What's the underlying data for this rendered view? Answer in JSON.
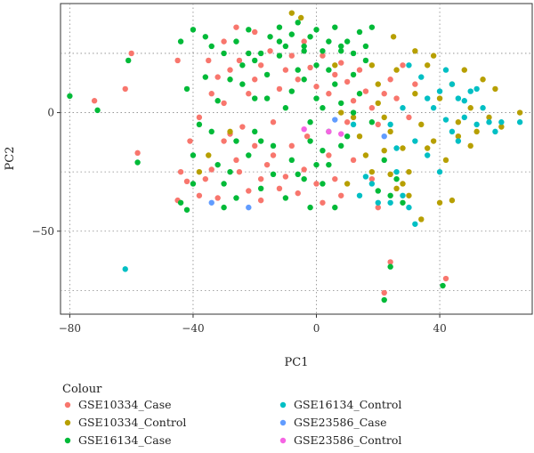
{
  "chart_data": {
    "type": "scatter",
    "xlabel": "PC1",
    "ylabel": "PC2",
    "xlim": [
      -83,
      70
    ],
    "ylim": [
      -85,
      46
    ],
    "xticks": [
      -80,
      -40,
      0,
      40
    ],
    "yticks": [
      -50,
      0
    ],
    "x_tick_labels": [
      "−80",
      "−40",
      "0",
      "40"
    ],
    "y_tick_labels": [
      "−50",
      "0"
    ],
    "xgrid": [
      -80,
      -40,
      0,
      40
    ],
    "ygrid": [
      -75,
      -50,
      -25,
      0,
      25
    ],
    "grid": "dotted",
    "legend": {
      "title": "Colour",
      "placement": "bottom"
    },
    "series": [
      {
        "name": "GSE10334_Case",
        "color": "#F8766D",
        "points": [
          [
            -60,
            25
          ],
          [
            -72,
            5
          ],
          [
            -62,
            10
          ],
          [
            -58,
            -17
          ],
          [
            -45,
            22
          ],
          [
            -44,
            -25
          ],
          [
            -45,
            -37
          ],
          [
            -42,
            -29
          ],
          [
            -41,
            -12
          ],
          [
            -38,
            -35
          ],
          [
            -36,
            -28
          ],
          [
            -34,
            -24
          ],
          [
            -32,
            -36
          ],
          [
            -30,
            -12
          ],
          [
            -28,
            -9
          ],
          [
            -26,
            -20
          ],
          [
            -25,
            -25
          ],
          [
            -22,
            -33
          ],
          [
            -20,
            -14
          ],
          [
            -18,
            -28
          ],
          [
            -16,
            -22
          ],
          [
            -14,
            -18
          ],
          [
            -12,
            -32
          ],
          [
            -10,
            -27
          ],
          [
            -8,
            -14
          ],
          [
            -6,
            -34
          ],
          [
            -4,
            -24
          ],
          [
            -3,
            -10
          ],
          [
            0,
            -30
          ],
          [
            2,
            -38
          ],
          [
            4,
            -18
          ],
          [
            6,
            -28
          ],
          [
            8,
            -35
          ],
          [
            -35,
            22
          ],
          [
            -32,
            15
          ],
          [
            -30,
            30
          ],
          [
            -28,
            18
          ],
          [
            -25,
            22
          ],
          [
            -22,
            8
          ],
          [
            -20,
            14
          ],
          [
            -18,
            20
          ],
          [
            -15,
            26
          ],
          [
            -12,
            10
          ],
          [
            -10,
            18
          ],
          [
            -8,
            24
          ],
          [
            -6,
            14
          ],
          [
            -4,
            30
          ],
          [
            -2,
            19
          ],
          [
            0,
            11
          ],
          [
            2,
            24
          ],
          [
            4,
            8
          ],
          [
            6,
            16
          ],
          [
            8,
            21
          ],
          [
            10,
            13
          ],
          [
            12,
            5
          ],
          [
            14,
            18
          ],
          [
            16,
            9
          ],
          [
            18,
            2
          ],
          [
            20,
            -5
          ],
          [
            22,
            8
          ],
          [
            24,
            14
          ],
          [
            26,
            6
          ],
          [
            28,
            20
          ],
          [
            30,
            -2
          ],
          [
            32,
            12
          ],
          [
            -20,
            34
          ],
          [
            -26,
            36
          ],
          [
            -30,
            4
          ],
          [
            -38,
            -2
          ],
          [
            -34,
            8
          ],
          [
            24,
            -63
          ],
          [
            22,
            -76
          ],
          [
            42,
            -70
          ],
          [
            -18,
            -37
          ],
          [
            -24,
            -6
          ],
          [
            -14,
            -4
          ],
          [
            10,
            -4
          ],
          [
            12,
            -20
          ],
          [
            18,
            -28
          ],
          [
            20,
            -40
          ]
        ]
      },
      {
        "name": "GSE10334_Control",
        "color": "#B79F00",
        "points": [
          [
            -8,
            42
          ],
          [
            -5,
            40
          ],
          [
            25,
            32
          ],
          [
            18,
            20
          ],
          [
            20,
            12
          ],
          [
            22,
            -2
          ],
          [
            24,
            -8
          ],
          [
            26,
            18
          ],
          [
            28,
            -15
          ],
          [
            30,
            -25
          ],
          [
            32,
            8
          ],
          [
            34,
            -5
          ],
          [
            36,
            20
          ],
          [
            38,
            -12
          ],
          [
            40,
            6
          ],
          [
            42,
            -20
          ],
          [
            44,
            12
          ],
          [
            46,
            -4
          ],
          [
            48,
            18
          ],
          [
            50,
            2
          ],
          [
            52,
            -8
          ],
          [
            54,
            14
          ],
          [
            56,
            -2
          ],
          [
            58,
            10
          ],
          [
            60,
            -6
          ],
          [
            66,
            0
          ],
          [
            34,
            -45
          ],
          [
            40,
            -38
          ],
          [
            44,
            -37
          ],
          [
            36,
            -15
          ],
          [
            30,
            -35
          ],
          [
            26,
            -32
          ],
          [
            24,
            -26
          ],
          [
            18,
            -25
          ],
          [
            16,
            -18
          ],
          [
            14,
            -10
          ],
          [
            20,
            4
          ],
          [
            28,
            -30
          ],
          [
            22,
            -16
          ],
          [
            46,
            -10
          ],
          [
            50,
            -14
          ],
          [
            -35,
            -18
          ],
          [
            -38,
            -25
          ],
          [
            -28,
            -8
          ],
          [
            8,
            0
          ],
          [
            12,
            -2
          ],
          [
            10,
            -30
          ],
          [
            6,
            20
          ],
          [
            38,
            24
          ],
          [
            32,
            26
          ]
        ]
      },
      {
        "name": "GSE16134_Case",
        "color": "#00BA38",
        "points": [
          [
            -80,
            7
          ],
          [
            -71,
            1
          ],
          [
            -61,
            22
          ],
          [
            -58,
            -21
          ],
          [
            -42,
            -41
          ],
          [
            -40,
            -18
          ],
          [
            -38,
            -5
          ],
          [
            -36,
            15
          ],
          [
            -34,
            28
          ],
          [
            -32,
            -22
          ],
          [
            -30,
            -40
          ],
          [
            -28,
            -25
          ],
          [
            -26,
            -12
          ],
          [
            -24,
            12
          ],
          [
            -22,
            25
          ],
          [
            -20,
            -8
          ],
          [
            -18,
            -32
          ],
          [
            -16,
            6
          ],
          [
            -14,
            -14
          ],
          [
            -12,
            30
          ],
          [
            -10,
            2
          ],
          [
            -8,
            -20
          ],
          [
            -6,
            18
          ],
          [
            -4,
            26
          ],
          [
            -2,
            -4
          ],
          [
            0,
            20
          ],
          [
            2,
            -16
          ],
          [
            4,
            -22
          ],
          [
            6,
            12
          ],
          [
            8,
            28
          ],
          [
            10,
            -10
          ],
          [
            12,
            16
          ],
          [
            14,
            8
          ],
          [
            16,
            22
          ],
          [
            18,
            -4
          ],
          [
            20,
            -33
          ],
          [
            22,
            -20
          ],
          [
            24,
            -35
          ],
          [
            26,
            -28
          ],
          [
            28,
            -38
          ],
          [
            -44,
            30
          ],
          [
            -40,
            35
          ],
          [
            -36,
            32
          ],
          [
            -30,
            25
          ],
          [
            -26,
            30
          ],
          [
            -22,
            35
          ],
          [
            -18,
            25
          ],
          [
            -15,
            32
          ],
          [
            -12,
            36
          ],
          [
            -10,
            28
          ],
          [
            -8,
            33
          ],
          [
            -6,
            38
          ],
          [
            -4,
            28
          ],
          [
            -2,
            32
          ],
          [
            0,
            35
          ],
          [
            2,
            26
          ],
          [
            4,
            30
          ],
          [
            6,
            36
          ],
          [
            8,
            26
          ],
          [
            10,
            30
          ],
          [
            12,
            25
          ],
          [
            14,
            34
          ],
          [
            16,
            28
          ],
          [
            18,
            36
          ],
          [
            -28,
            14
          ],
          [
            -24,
            20
          ],
          [
            -20,
            6
          ],
          [
            -16,
            16
          ],
          [
            -12,
            24
          ],
          [
            -8,
            9
          ],
          [
            -4,
            14
          ],
          [
            0,
            6
          ],
          [
            4,
            18
          ],
          [
            8,
            4
          ],
          [
            12,
            0
          ],
          [
            -34,
            -8
          ],
          [
            -30,
            -30
          ],
          [
            -26,
            -36
          ],
          [
            -22,
            -18
          ],
          [
            -18,
            -12
          ],
          [
            -14,
            -26
          ],
          [
            -10,
            -36
          ],
          [
            -6,
            -26
          ],
          [
            -2,
            -12
          ],
          [
            2,
            -30
          ],
          [
            6,
            -40
          ],
          [
            24,
            -65
          ],
          [
            22,
            -79
          ],
          [
            41,
            -73
          ],
          [
            -4,
            -28
          ],
          [
            -2,
            -40
          ],
          [
            4,
            -8
          ],
          [
            2,
            2
          ],
          [
            -40,
            -30
          ],
          [
            -44,
            -38
          ],
          [
            -42,
            10
          ],
          [
            -32,
            5
          ],
          [
            8,
            -14
          ],
          [
            0,
            -22
          ],
          [
            -20,
            22
          ]
        ]
      },
      {
        "name": "GSE16134_Control",
        "color": "#00BFC4",
        "points": [
          [
            -62,
            -66
          ],
          [
            32,
            -47
          ],
          [
            24,
            -38
          ],
          [
            30,
            20
          ],
          [
            34,
            15
          ],
          [
            36,
            6
          ],
          [
            38,
            2
          ],
          [
            40,
            9
          ],
          [
            42,
            -3
          ],
          [
            44,
            12
          ],
          [
            46,
            6
          ],
          [
            48,
            -2
          ],
          [
            50,
            9
          ],
          [
            52,
            -5
          ],
          [
            54,
            2
          ],
          [
            56,
            -4
          ],
          [
            58,
            -8
          ],
          [
            60,
            -4
          ],
          [
            66,
            -4
          ],
          [
            24,
            -5
          ],
          [
            26,
            -15
          ],
          [
            28,
            -35
          ],
          [
            30,
            -40
          ],
          [
            16,
            -27
          ],
          [
            18,
            -30
          ],
          [
            20,
            -38
          ],
          [
            14,
            -35
          ],
          [
            28,
            2
          ],
          [
            32,
            -12
          ],
          [
            36,
            -18
          ],
          [
            40,
            -25
          ],
          [
            44,
            -8
          ],
          [
            48,
            5
          ],
          [
            52,
            10
          ],
          [
            42,
            18
          ],
          [
            46,
            -12
          ],
          [
            12,
            -5
          ],
          [
            26,
            -25
          ]
        ]
      },
      {
        "name": "GSE23586_Case",
        "color": "#619CFF",
        "points": [
          [
            6,
            -3
          ],
          [
            22,
            -10
          ],
          [
            -34,
            -38
          ],
          [
            -22,
            -40
          ]
        ]
      },
      {
        "name": "GSE23586_Control",
        "color": "#F564E3",
        "points": [
          [
            -4,
            -7
          ],
          [
            4,
            -8
          ],
          [
            8,
            -9
          ]
        ]
      }
    ]
  }
}
